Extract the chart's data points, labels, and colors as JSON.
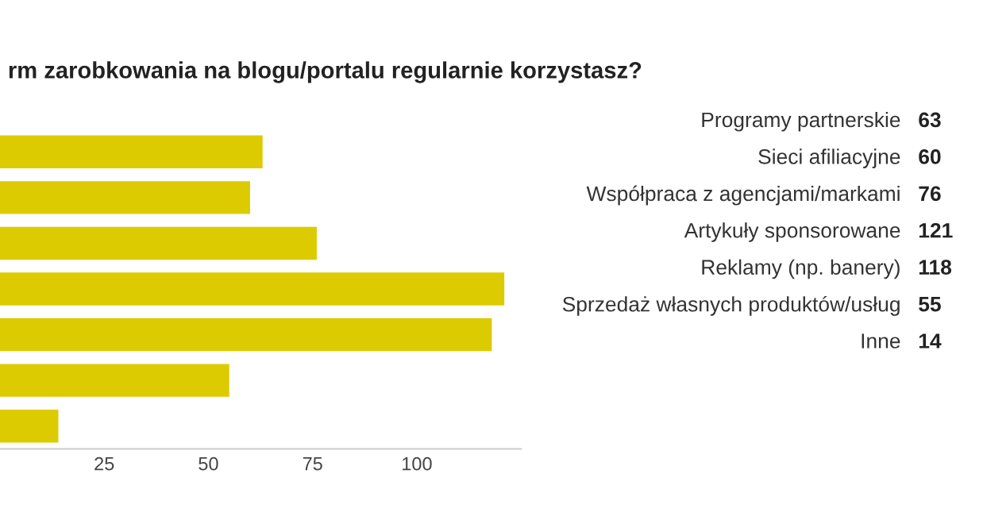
{
  "chart_data": [
    {
      "type": "bar",
      "orientation": "horizontal",
      "title": "rm zarobkowania na blogu/portalu regularnie korzystasz?",
      "categories": [
        null,
        null,
        null,
        null,
        null,
        null,
        null
      ],
      "values": [
        63,
        60,
        76,
        121,
        118,
        55,
        14
      ],
      "color": "#dccb00",
      "xlim": [
        0,
        125
      ],
      "xticks": [
        25,
        50,
        75,
        100
      ],
      "grid": false
    },
    {
      "type": "other",
      "categories": [
        "Programy partnerskie",
        "Sieci afiliacyjne",
        "Współpraca z agencjami/markami",
        "Artykuły sponsorowane",
        "Reklamy (np. banery)",
        "Sprzedaż własnych produktów/usług",
        "Inne"
      ],
      "values": [
        63,
        60,
        76,
        121,
        118,
        55,
        14
      ],
      "data_labels": true
    }
  ]
}
